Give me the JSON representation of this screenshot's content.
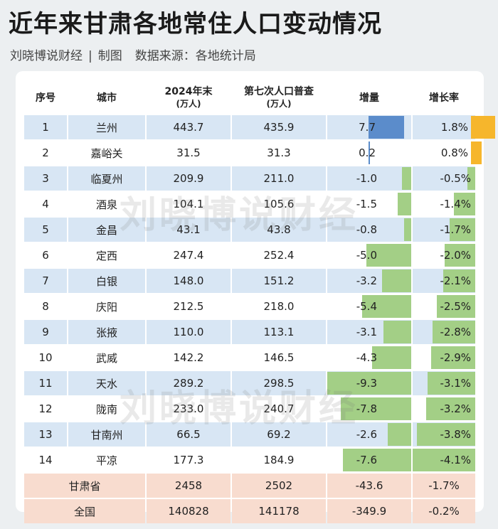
{
  "title": "近年来甘肃各地常住人口变动情况",
  "subtitle": {
    "author": "刘晓博说财经",
    "sep": "|",
    "tag": "制图",
    "source": "数据来源：各地统计局"
  },
  "watermark": "刘晓博说财经",
  "headers": {
    "idx": "序号",
    "city": "城市",
    "pop": "2024年末",
    "pop_unit": "(万人)",
    "census": "第七次人口普查",
    "census_unit": "(万人)",
    "inc": "增量",
    "rate": "增长率"
  },
  "colors": {
    "positive_increase": "#5b8ccb",
    "positive_rate": "#f6b62c",
    "negative": "#a3cf86",
    "summary_row": "#f8dccf",
    "stripe": "#d8e6f4"
  },
  "chart_data": {
    "type": "table",
    "columns": [
      "序号",
      "城市",
      "2024年末(万人)",
      "第七次人口普查(万人)",
      "增量",
      "增长率"
    ],
    "rows": [
      {
        "idx": "1",
        "city": "兰州",
        "pop": "443.7",
        "census": "435.9",
        "inc": "7.7",
        "rate": "1.8%",
        "inc_v": 7.7,
        "rate_v": 1.8
      },
      {
        "idx": "2",
        "city": "嘉峪关",
        "pop": "31.5",
        "census": "31.3",
        "inc": "0.2",
        "rate": "0.8%",
        "inc_v": 0.2,
        "rate_v": 0.8
      },
      {
        "idx": "3",
        "city": "临夏州",
        "pop": "209.9",
        "census": "211.0",
        "inc": "-1.0",
        "rate": "-0.5%",
        "inc_v": -1.0,
        "rate_v": -0.5
      },
      {
        "idx": "4",
        "city": "酒泉",
        "pop": "104.1",
        "census": "105.6",
        "inc": "-1.5",
        "rate": "-1.4%",
        "inc_v": -1.5,
        "rate_v": -1.4
      },
      {
        "idx": "5",
        "city": "金昌",
        "pop": "43.1",
        "census": "43.8",
        "inc": "-0.8",
        "rate": "-1.7%",
        "inc_v": -0.8,
        "rate_v": -1.7
      },
      {
        "idx": "6",
        "city": "定西",
        "pop": "247.4",
        "census": "252.4",
        "inc": "-5.0",
        "rate": "-2.0%",
        "inc_v": -5.0,
        "rate_v": -2.0
      },
      {
        "idx": "7",
        "city": "白银",
        "pop": "148.0",
        "census": "151.2",
        "inc": "-3.2",
        "rate": "-2.1%",
        "inc_v": -3.2,
        "rate_v": -2.1
      },
      {
        "idx": "8",
        "city": "庆阳",
        "pop": "212.5",
        "census": "218.0",
        "inc": "-5.4",
        "rate": "-2.5%",
        "inc_v": -5.4,
        "rate_v": -2.5
      },
      {
        "idx": "9",
        "city": "张掖",
        "pop": "110.0",
        "census": "113.1",
        "inc": "-3.1",
        "rate": "-2.8%",
        "inc_v": -3.1,
        "rate_v": -2.8
      },
      {
        "idx": "10",
        "city": "武威",
        "pop": "142.2",
        "census": "146.5",
        "inc": "-4.3",
        "rate": "-2.9%",
        "inc_v": -4.3,
        "rate_v": -2.9
      },
      {
        "idx": "11",
        "city": "天水",
        "pop": "289.2",
        "census": "298.5",
        "inc": "-9.3",
        "rate": "-3.1%",
        "inc_v": -9.3,
        "rate_v": -3.1
      },
      {
        "idx": "12",
        "city": "陇南",
        "pop": "233.0",
        "census": "240.7",
        "inc": "-7.8",
        "rate": "-3.2%",
        "inc_v": -7.8,
        "rate_v": -3.2
      },
      {
        "idx": "13",
        "city": "甘南州",
        "pop": "66.5",
        "census": "69.2",
        "inc": "-2.6",
        "rate": "-3.8%",
        "inc_v": -2.6,
        "rate_v": -3.8
      },
      {
        "idx": "14",
        "city": "平凉",
        "pop": "177.3",
        "census": "184.9",
        "inc": "-7.6",
        "rate": "-4.1%",
        "inc_v": -7.6,
        "rate_v": -4.1
      }
    ],
    "summary": [
      {
        "city": "甘肃省",
        "pop": "2458",
        "census": "2502",
        "inc": "-43.6",
        "rate": "-1.7%"
      },
      {
        "city": "全国",
        "pop": "140828",
        "census": "141178",
        "inc": "-349.9",
        "rate": "-0.2%"
      }
    ]
  }
}
